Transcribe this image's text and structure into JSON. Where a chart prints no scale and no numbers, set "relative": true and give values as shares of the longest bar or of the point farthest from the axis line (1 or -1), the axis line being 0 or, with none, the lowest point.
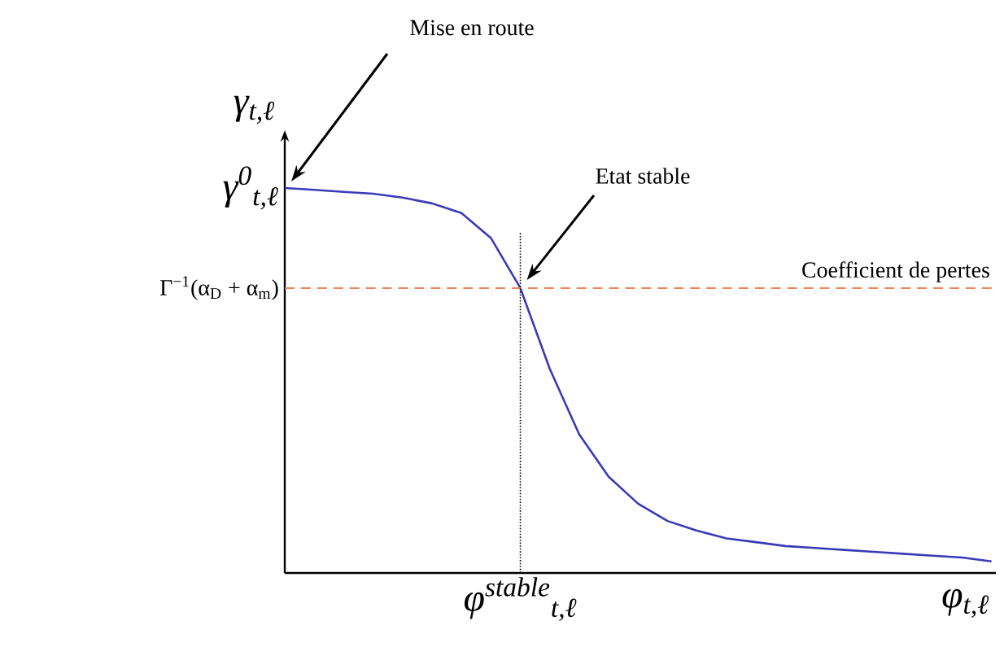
{
  "chart_data": {
    "type": "line",
    "relative": true,
    "xlabel": "φ$_{t,ℓ}$",
    "ylabel": "γ$_{t,ℓ}$",
    "categories": [
      null,
      null,
      null,
      null,
      null,
      null,
      null,
      null,
      null,
      null,
      null,
      null,
      null,
      null,
      null,
      null,
      null,
      null,
      null,
      null,
      null,
      null,
      null,
      null,
      null
    ],
    "values": [
      1.0,
      0.995,
      0.99,
      0.985,
      0.975,
      0.96,
      0.935,
      0.87,
      0.74,
      0.53,
      0.36,
      0.25,
      0.18,
      0.135,
      0.11,
      0.09,
      0.08,
      0.07,
      0.065,
      0.06,
      0.055,
      0.05,
      0.045,
      0.04,
      0.03
    ],
    "color": "#3a3ab8",
    "ref_lines": [
      {
        "axis": "y",
        "value": 0.74,
        "label": "Coefficient de pertes",
        "color": "#e8875a",
        "line_style": "dashed"
      }
    ],
    "annotations": [
      "Mise en route",
      "Etat stable",
      "γ$^{0}$$_{t,ℓ}$",
      "Γ$^{−1}$(α$_{D}$ + α$_{m}$)",
      "φ$^{stable}$$_{t,ℓ}$"
    ]
  }
}
